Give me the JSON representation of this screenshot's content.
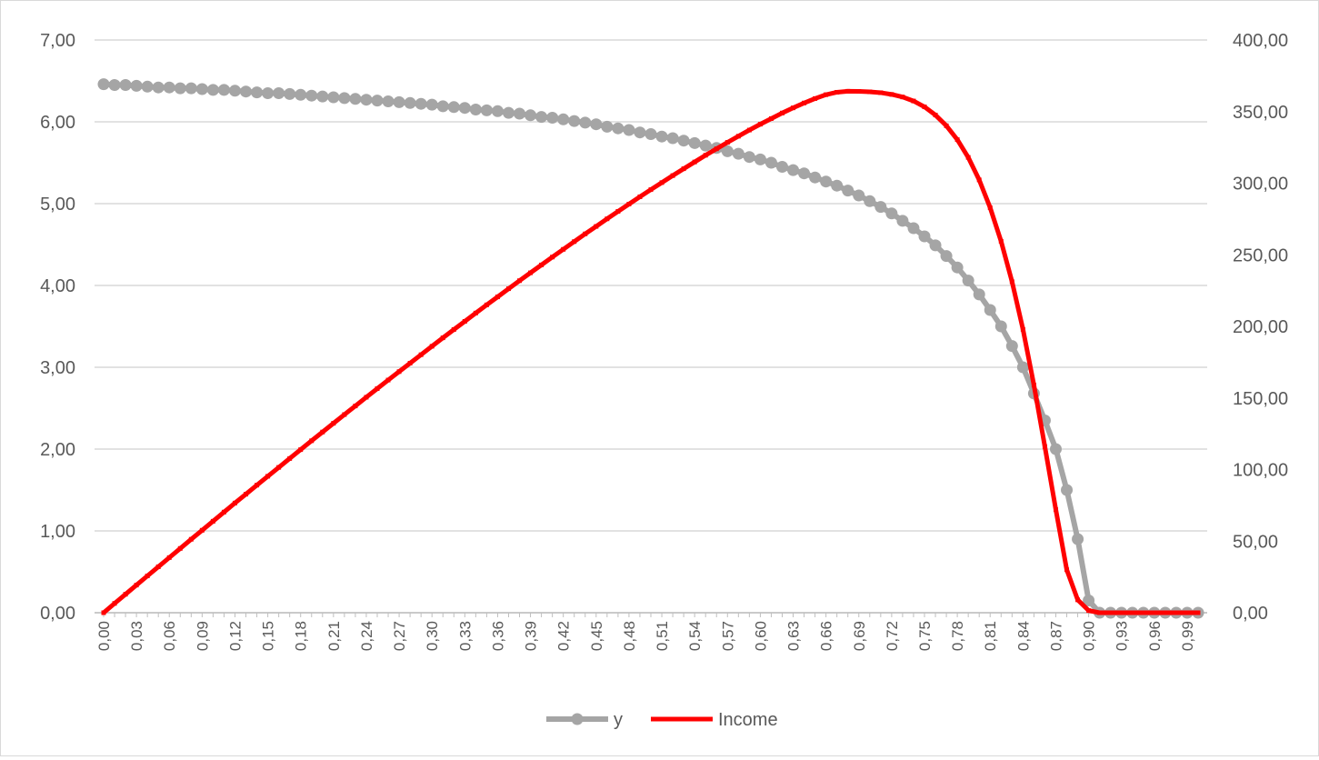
{
  "chart_data": {
    "type": "line",
    "title": "",
    "xlabel": "",
    "ylabel": "",
    "y2label": "",
    "x": [
      0.0,
      0.01,
      0.02,
      0.03,
      0.04,
      0.05,
      0.06,
      0.07,
      0.08,
      0.09,
      0.1,
      0.11,
      0.12,
      0.13,
      0.14,
      0.15,
      0.16,
      0.17,
      0.18,
      0.19,
      0.2,
      0.21,
      0.22,
      0.23,
      0.24,
      0.25,
      0.26,
      0.27,
      0.28,
      0.29,
      0.3,
      0.31,
      0.32,
      0.33,
      0.34,
      0.35,
      0.36,
      0.37,
      0.38,
      0.39,
      0.4,
      0.41,
      0.42,
      0.43,
      0.44,
      0.45,
      0.46,
      0.47,
      0.48,
      0.49,
      0.5,
      0.51,
      0.52,
      0.53,
      0.54,
      0.55,
      0.56,
      0.57,
      0.58,
      0.59,
      0.6,
      0.61,
      0.62,
      0.63,
      0.64,
      0.65,
      0.66,
      0.67,
      0.68,
      0.69,
      0.7,
      0.71,
      0.72,
      0.73,
      0.74,
      0.75,
      0.76,
      0.77,
      0.78,
      0.79,
      0.8,
      0.81,
      0.82,
      0.83,
      0.84,
      0.85,
      0.86,
      0.87,
      0.88,
      0.89,
      0.9,
      0.91,
      0.92,
      0.93,
      0.94,
      0.95,
      0.96,
      0.97,
      0.98,
      0.99,
      1.0
    ],
    "x_tick_labels": [
      "0,00",
      "0,03",
      "0,06",
      "0,09",
      "0,12",
      "0,15",
      "0,18",
      "0,21",
      "0,24",
      "0,27",
      "0,30",
      "0,33",
      "0,36",
      "0,39",
      "0,42",
      "0,45",
      "0,48",
      "0,51",
      "0,54",
      "0,57",
      "0,60",
      "0,63",
      "0,66",
      "0,69",
      "0,72",
      "0,75",
      "0,78",
      "0,81",
      "0,84",
      "0,87",
      "0,90",
      "0,93",
      "0,96",
      "0,99"
    ],
    "y_left": {
      "ylim": [
        0,
        7
      ],
      "ticks": [
        "0,00",
        "1,00",
        "2,00",
        "3,00",
        "4,00",
        "5,00",
        "6,00",
        "7,00"
      ]
    },
    "y_right": {
      "ylim": [
        0,
        400
      ],
      "ticks": [
        "0,00",
        "50,00",
        "100,00",
        "150,00",
        "200,00",
        "250,00",
        "300,00",
        "350,00",
        "400,00"
      ]
    },
    "series": [
      {
        "name": "y",
        "axis": "left",
        "color": "#a5a5a5",
        "marker": "circle",
        "values": [
          6.46,
          6.45,
          6.45,
          6.44,
          6.43,
          6.42,
          6.42,
          6.41,
          6.41,
          6.4,
          6.39,
          6.39,
          6.38,
          6.37,
          6.36,
          6.35,
          6.35,
          6.34,
          6.33,
          6.32,
          6.31,
          6.3,
          6.29,
          6.28,
          6.27,
          6.26,
          6.25,
          6.24,
          6.23,
          6.22,
          6.21,
          6.19,
          6.18,
          6.17,
          6.15,
          6.14,
          6.13,
          6.11,
          6.1,
          6.08,
          6.06,
          6.05,
          6.03,
          6.01,
          5.99,
          5.97,
          5.94,
          5.92,
          5.9,
          5.87,
          5.85,
          5.82,
          5.8,
          5.77,
          5.74,
          5.71,
          5.68,
          5.64,
          5.61,
          5.57,
          5.54,
          5.5,
          5.45,
          5.41,
          5.37,
          5.32,
          5.27,
          5.22,
          5.16,
          5.1,
          5.03,
          4.96,
          4.88,
          4.79,
          4.7,
          4.6,
          4.49,
          4.36,
          4.22,
          4.06,
          3.89,
          3.7,
          3.5,
          3.26,
          3.0,
          2.68,
          2.35,
          2.0,
          1.5,
          0.9,
          0.15,
          0.0,
          0.0,
          0.0,
          0.0,
          0.0,
          0.0,
          0.0,
          0.0,
          0.0,
          0.0
        ]
      },
      {
        "name": "Income",
        "axis": "right",
        "color": "#ff0000",
        "marker": "none",
        "values": [
          0.0,
          6.5,
          12.9,
          19.3,
          25.7,
          32.1,
          38.5,
          44.9,
          51.3,
          57.6,
          63.9,
          70.3,
          76.6,
          82.8,
          89.1,
          95.3,
          101.5,
          107.7,
          113.9,
          120.1,
          126.2,
          132.3,
          138.4,
          144.4,
          150.5,
          156.5,
          162.5,
          168.4,
          174.3,
          180.2,
          186.1,
          192.0,
          197.8,
          203.5,
          209.3,
          215.0,
          220.6,
          226.3,
          231.9,
          237.4,
          242.9,
          248.4,
          253.8,
          259.2,
          264.6,
          269.8,
          275.1,
          280.3,
          285.4,
          290.5,
          295.5,
          300.4,
          305.3,
          310.1,
          314.8,
          319.5,
          324.0,
          328.5,
          332.8,
          337.1,
          341.2,
          345.1,
          349.0,
          352.6,
          356.0,
          359.1,
          361.8,
          363.5,
          364.2,
          364.1,
          363.8,
          363.2,
          362.0,
          360.2,
          357.4,
          353.3,
          347.6,
          340.1,
          330.4,
          318.0,
          302.3,
          282.9,
          259.4,
          231.2,
          197.9,
          159.0,
          116.0,
          72.0,
          30.0,
          9.0,
          1.5,
          0.0,
          0.0,
          0.0,
          0.0,
          0.0,
          0.0,
          0.0,
          0.0,
          0.0,
          0.0
        ]
      }
    ],
    "grid": true,
    "legend_position": "bottom"
  }
}
